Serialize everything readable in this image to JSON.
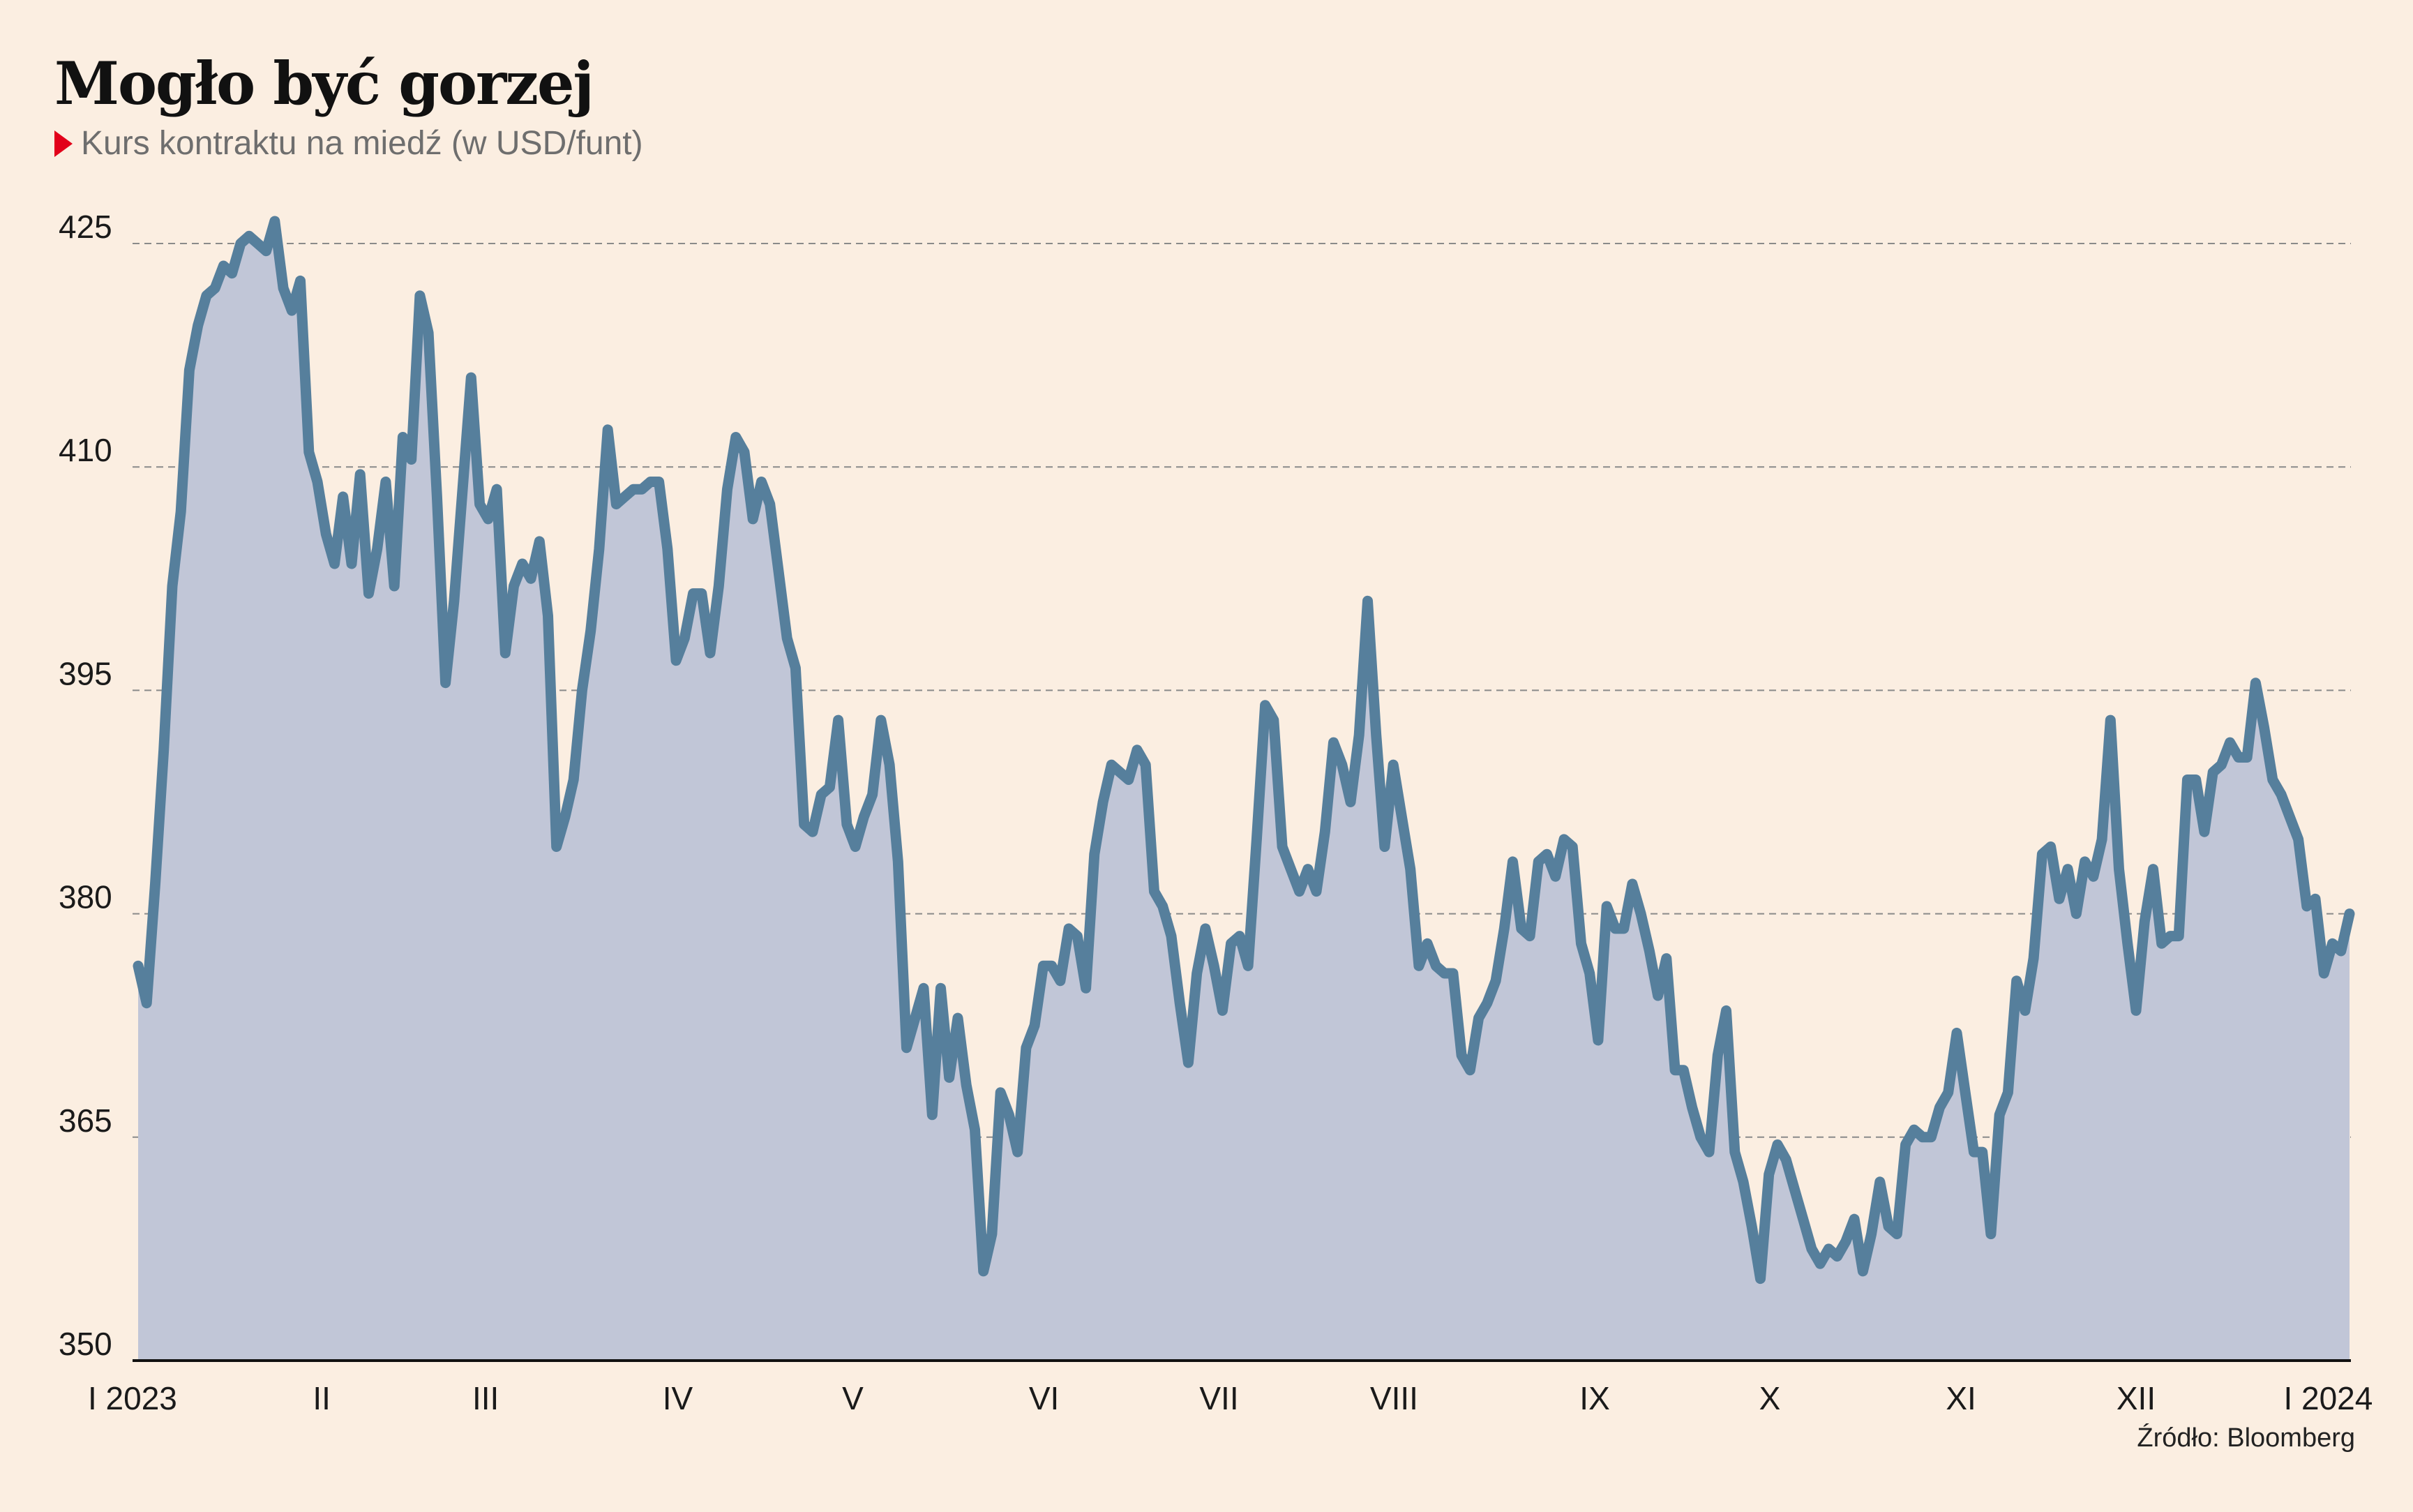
{
  "header": {
    "title": "Mogło być gorzej",
    "subtitle": "Kurs kontraktu na miedź (w USD/funt)"
  },
  "footer": {
    "source": "Źródło: Bloomberg"
  },
  "colors": {
    "line": "#567f9c",
    "area": "#c1c6d7",
    "background": "#fbeee1",
    "marker": "#e2001a"
  },
  "chart_data": {
    "type": "area",
    "ylim": [
      350,
      425
    ],
    "yticks": [
      350,
      365,
      380,
      395,
      410,
      425
    ],
    "grid": "horizontal-dashed",
    "month_ticks": [
      {
        "label": "I 2023",
        "x": 0
      },
      {
        "label": "II",
        "x": 21.5
      },
      {
        "label": "III",
        "x": 40.7
      },
      {
        "label": "IV",
        "x": 63.2
      },
      {
        "label": "V",
        "x": 83.7
      },
      {
        "label": "VI",
        "x": 106.1
      },
      {
        "label": "VII",
        "x": 126.6
      },
      {
        "label": "VIII",
        "x": 147.1
      },
      {
        "label": "IX",
        "x": 170.6
      },
      {
        "label": "X",
        "x": 191.1
      },
      {
        "label": "XI",
        "x": 213.5
      },
      {
        "label": "XII",
        "x": 234.0
      },
      {
        "label": "I 2024",
        "x": 256.5
      }
    ],
    "series": [
      {
        "values": [
          376.5,
          374,
          382,
          391,
          402,
          407,
          416.5,
          419.5,
          421.5,
          422,
          423.5,
          423,
          425,
          425.5,
          425,
          424.5,
          426.5,
          422,
          420.5,
          422.5,
          411,
          409,
          405.5,
          403.5,
          408,
          403.5,
          409.5,
          401.5,
          404.5,
          409,
          402,
          412,
          410.5,
          421.5,
          419,
          408,
          395.5,
          401,
          408.5,
          416,
          407.5,
          406.5,
          408.5,
          397.5,
          402,
          403.5,
          402.5,
          405,
          400,
          384.5,
          386.5,
          389,
          395,
          399,
          404.5,
          412.5,
          407.5,
          408,
          408.5,
          408.5,
          409,
          409,
          404.5,
          397,
          398.5,
          401.5,
          401.5,
          397.5,
          402,
          408.5,
          412,
          411,
          406.5,
          409,
          407.5,
          403,
          398.5,
          396.5,
          386,
          385.5,
          388,
          388.5,
          393,
          386,
          384.5,
          386.5,
          388,
          393,
          390,
          383.5,
          371,
          373,
          375,
          366.5,
          375,
          369,
          373,
          368.5,
          365.5,
          356,
          358.5,
          368,
          366.5,
          364,
          371,
          372.5,
          376.5,
          376.5,
          375.5,
          379,
          378.5,
          375,
          384,
          387.5,
          390,
          389.5,
          389,
          391,
          390,
          381.5,
          380.5,
          378.5,
          374,
          370,
          376,
          379,
          376.5,
          373.5,
          378,
          378.5,
          376.5,
          385,
          394,
          393,
          384.5,
          383,
          381.5,
          383,
          381.5,
          385.5,
          391.5,
          390,
          387.5,
          392,
          401,
          392,
          384.5,
          390,
          386.5,
          383,
          376.5,
          378,
          376.5,
          376,
          376,
          370.5,
          369.5,
          373,
          374,
          375.5,
          379,
          383.5,
          379,
          378.5,
          383.5,
          384,
          382.5,
          385,
          384.5,
          378,
          376,
          371.5,
          380.5,
          379,
          379,
          382,
          380,
          377.5,
          374.5,
          377,
          369.5,
          369.5,
          367,
          365,
          364,
          370.5,
          373.5,
          364,
          362,
          359,
          355.5,
          362.5,
          364.5,
          363.5,
          361.5,
          359.5,
          357.5,
          356.5,
          357.5,
          357,
          358,
          359.5,
          356,
          358.5,
          362,
          359,
          358.5,
          364.5,
          365.5,
          365,
          365,
          367,
          368,
          372,
          368,
          364,
          364,
          358.5,
          366.5,
          368,
          375.5,
          373.5,
          377,
          384,
          384.5,
          381,
          383,
          380,
          383.5,
          382.5,
          385,
          393,
          383,
          378,
          373.5,
          379.5,
          383,
          378,
          378.5,
          378.5,
          389,
          389,
          385.5,
          389.5,
          390,
          391.5,
          390.5,
          390.5,
          395.5,
          392.5,
          389,
          388,
          386.5,
          385,
          380.5,
          381,
          376,
          378,
          377.5,
          380
        ]
      }
    ]
  }
}
